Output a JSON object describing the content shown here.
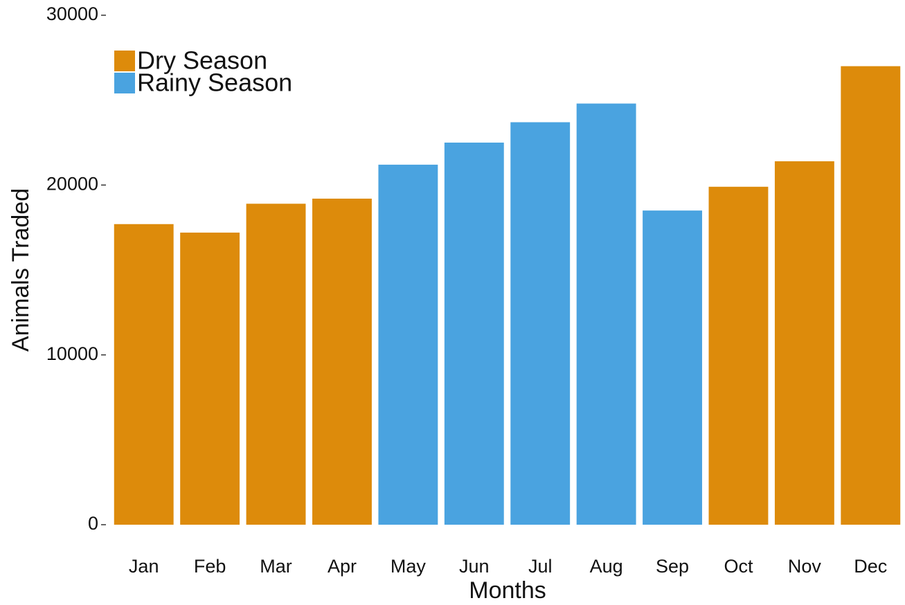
{
  "chart_data": {
    "type": "bar",
    "x_label": "Months",
    "y_label": "Animals Traded",
    "categories": [
      "Jan",
      "Feb",
      "Mar",
      "Apr",
      "May",
      "Jun",
      "Jul",
      "Aug",
      "Sep",
      "Oct",
      "Nov",
      "Dec"
    ],
    "series": [
      {
        "name": "Dry Season",
        "color": "#dd8b0b",
        "values": [
          17700,
          17200,
          18900,
          19200,
          null,
          null,
          null,
          null,
          null,
          19900,
          21400,
          27000
        ]
      },
      {
        "name": "Rainy Season",
        "color": "#4aa3e0",
        "values": [
          null,
          null,
          null,
          null,
          21200,
          22500,
          23700,
          24800,
          18500,
          null,
          null,
          null
        ]
      }
    ],
    "ylim": [
      0,
      30000
    ],
    "yticks": [
      0,
      10000,
      20000,
      30000
    ],
    "grid": false,
    "legend": "top-left"
  }
}
